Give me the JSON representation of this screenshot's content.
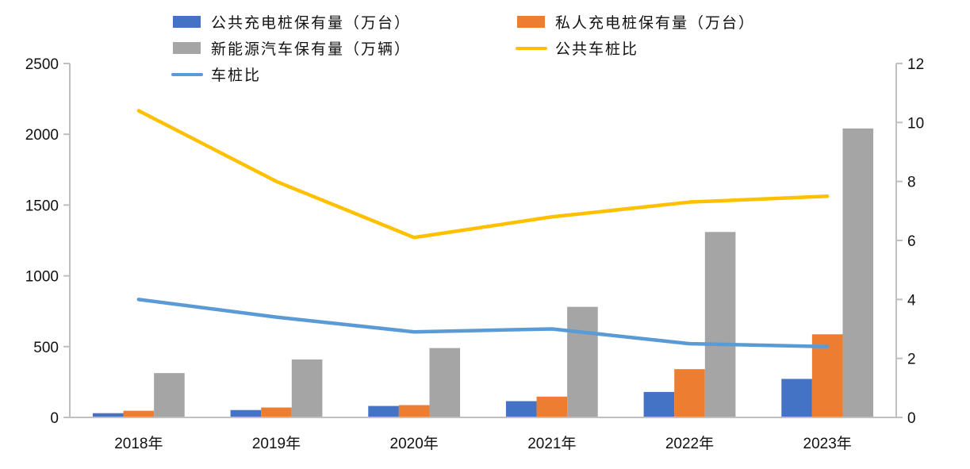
{
  "chart_data": {
    "type": "bar",
    "title": "",
    "xlabel": "",
    "ylabel": "",
    "y2label": "",
    "categories": [
      "2018年",
      "2019年",
      "2020年",
      "2021年",
      "2022年",
      "2023年"
    ],
    "ylim": [
      0,
      2500
    ],
    "yticks": [
      0,
      500,
      1000,
      1500,
      2000,
      2500
    ],
    "y2lim": [
      0,
      12
    ],
    "y2ticks": [
      0,
      2,
      4,
      6,
      8,
      10,
      12
    ],
    "grid": false,
    "legend_position": "top",
    "series": [
      {
        "name": "公共充电桩保有量（万台）",
        "type": "bar",
        "axis": "left",
        "color": "#4472C4",
        "values": [
          30,
          52,
          81,
          115,
          180,
          272
        ]
      },
      {
        "name": "私人充电桩保有量（万台）",
        "type": "bar",
        "axis": "left",
        "color": "#ED7D31",
        "values": [
          47,
          70,
          87,
          147,
          341,
          587
        ]
      },
      {
        "name": "新能源汽车保有量（万辆）",
        "type": "bar",
        "axis": "left",
        "color": "#A5A5A5",
        "values": [
          313,
          409,
          490,
          781,
          1310,
          2041
        ]
      },
      {
        "name": "公共车桩比",
        "type": "line",
        "axis": "right",
        "color": "#FFC000",
        "values": [
          10.4,
          8.0,
          6.1,
          6.8,
          7.3,
          7.5
        ]
      },
      {
        "name": "车桩比",
        "type": "line",
        "axis": "right",
        "color": "#5B9BD5",
        "values": [
          4.0,
          3.4,
          2.9,
          3.0,
          2.5,
          2.4
        ]
      }
    ]
  }
}
